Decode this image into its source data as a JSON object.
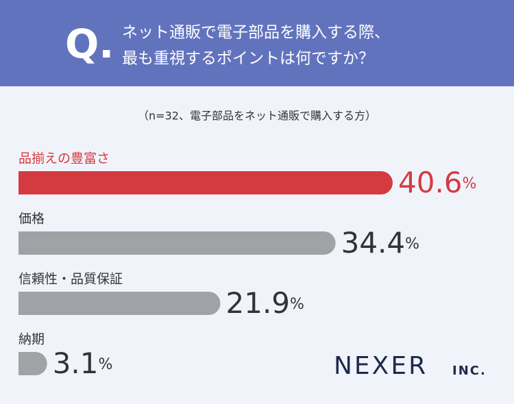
{
  "chart_data": {
    "type": "bar",
    "question_mark": "Q.",
    "title_lines": [
      "ネット通販で電子部品を購入する際、",
      "最も重視するポイントは何ですか？"
    ],
    "subtitle": "（n=32、電子部品をネット通販で購入する方）",
    "categories": [
      "品揃えの豊富さ",
      "価格",
      "信頼性・品質保証",
      "納期"
    ],
    "values": [
      40.6,
      34.4,
      21.9,
      3.1
    ],
    "value_labels": [
      "40.6%",
      "34.4%",
      "21.9%",
      "3.1%"
    ],
    "color": "#a1a2a6",
    "highlight_index": 0,
    "highlight_color": "#d43b40",
    "logo": "NEXER",
    "logo_suffix": "INC."
  }
}
